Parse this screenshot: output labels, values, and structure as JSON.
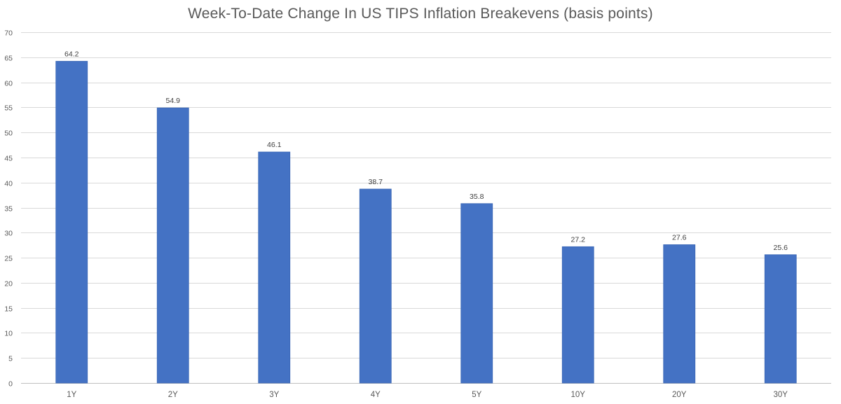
{
  "chart_data": {
    "type": "bar",
    "title": "Week-To-Date Change In US TIPS Inflation Breakevens (basis points)",
    "xlabel": "",
    "ylabel": "",
    "categories": [
      "1Y",
      "2Y",
      "3Y",
      "4Y",
      "5Y",
      "10Y",
      "20Y",
      "30Y"
    ],
    "values": [
      64.2,
      54.9,
      46.1,
      38.7,
      35.8,
      27.2,
      27.6,
      25.6
    ],
    "data_labels": [
      "64.2",
      "54.9",
      "46.1",
      "38.7",
      "35.8",
      "27.2",
      "27.6",
      "25.6"
    ],
    "ylim": [
      0,
      70
    ],
    "yticks": [
      0,
      5,
      10,
      15,
      20,
      25,
      30,
      35,
      40,
      45,
      50,
      55,
      60,
      65,
      70
    ],
    "grid": true,
    "legend": "none",
    "bar_color": "#4472c4"
  }
}
